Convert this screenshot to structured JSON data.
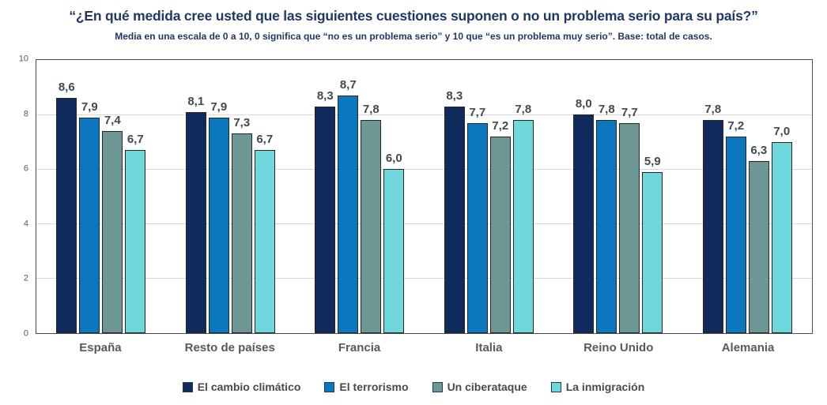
{
  "title": "“¿En qué medida cree usted que las siguientes cuestiones suponen o no un problema serio para  su país?”",
  "subtitle": "Media en una escala de 0 a 10, 0 significa que “no es un problema serio” y 10 que “es un problema muy serio”. Base: total de casos.",
  "colors": {
    "title_text": "#1f3864",
    "axis_text": "#595959",
    "category_text": "#595959",
    "value_label_text": "#404a52",
    "legend_text": "#4a4a4a",
    "plot_border": "#4d4d4d",
    "gridline": "#d9d9d9",
    "bar_border": "#262626"
  },
  "chart_data": {
    "type": "bar",
    "title": "“¿En qué medida cree usted que las siguientes cuestiones suponen o no un problema serio para  su país?”",
    "subtitle": "Media en una escala de 0 a 10, 0 significa que “no es un problema serio” y 10 que “es un problema muy serio”. Base: total de casos.",
    "categories": [
      "España",
      "Resto de países",
      "Francia",
      "Italia",
      "Reino Unido",
      "Alemania"
    ],
    "series": [
      {
        "name": "El cambio climático",
        "color": "#112a5e",
        "values": [
          8.6,
          8.1,
          8.3,
          8.3,
          8.0,
          7.8
        ],
        "labels": [
          "8,6",
          "8,1",
          "8,3",
          "8,3",
          "8,0",
          "7,8"
        ]
      },
      {
        "name": "El terrorismo",
        "color": "#0a77be",
        "values": [
          7.9,
          7.9,
          8.7,
          7.7,
          7.8,
          7.2
        ],
        "labels": [
          "7,9",
          "7,9",
          "8,7",
          "7,7",
          "7,8",
          "7,2"
        ]
      },
      {
        "name": "Un ciberataque",
        "color": "#6d9795",
        "values": [
          7.4,
          7.3,
          7.8,
          7.2,
          7.7,
          6.3
        ],
        "labels": [
          "7,4",
          "7,3",
          "7,8",
          "7,2",
          "7,7",
          "6,3"
        ]
      },
      {
        "name": "La inmigración",
        "color": "#6fd8dd",
        "values": [
          6.7,
          6.7,
          6.0,
          7.8,
          5.9,
          7.0
        ],
        "labels": [
          "6,7",
          "6,7",
          "6,0",
          "7,8",
          "5,9",
          "7,0"
        ]
      }
    ],
    "xlabel": "",
    "ylabel": "",
    "ylim": [
      0,
      10
    ],
    "yticks": [
      0,
      2,
      4,
      6,
      8,
      10
    ],
    "grid": true,
    "legend_position": "bottom"
  }
}
